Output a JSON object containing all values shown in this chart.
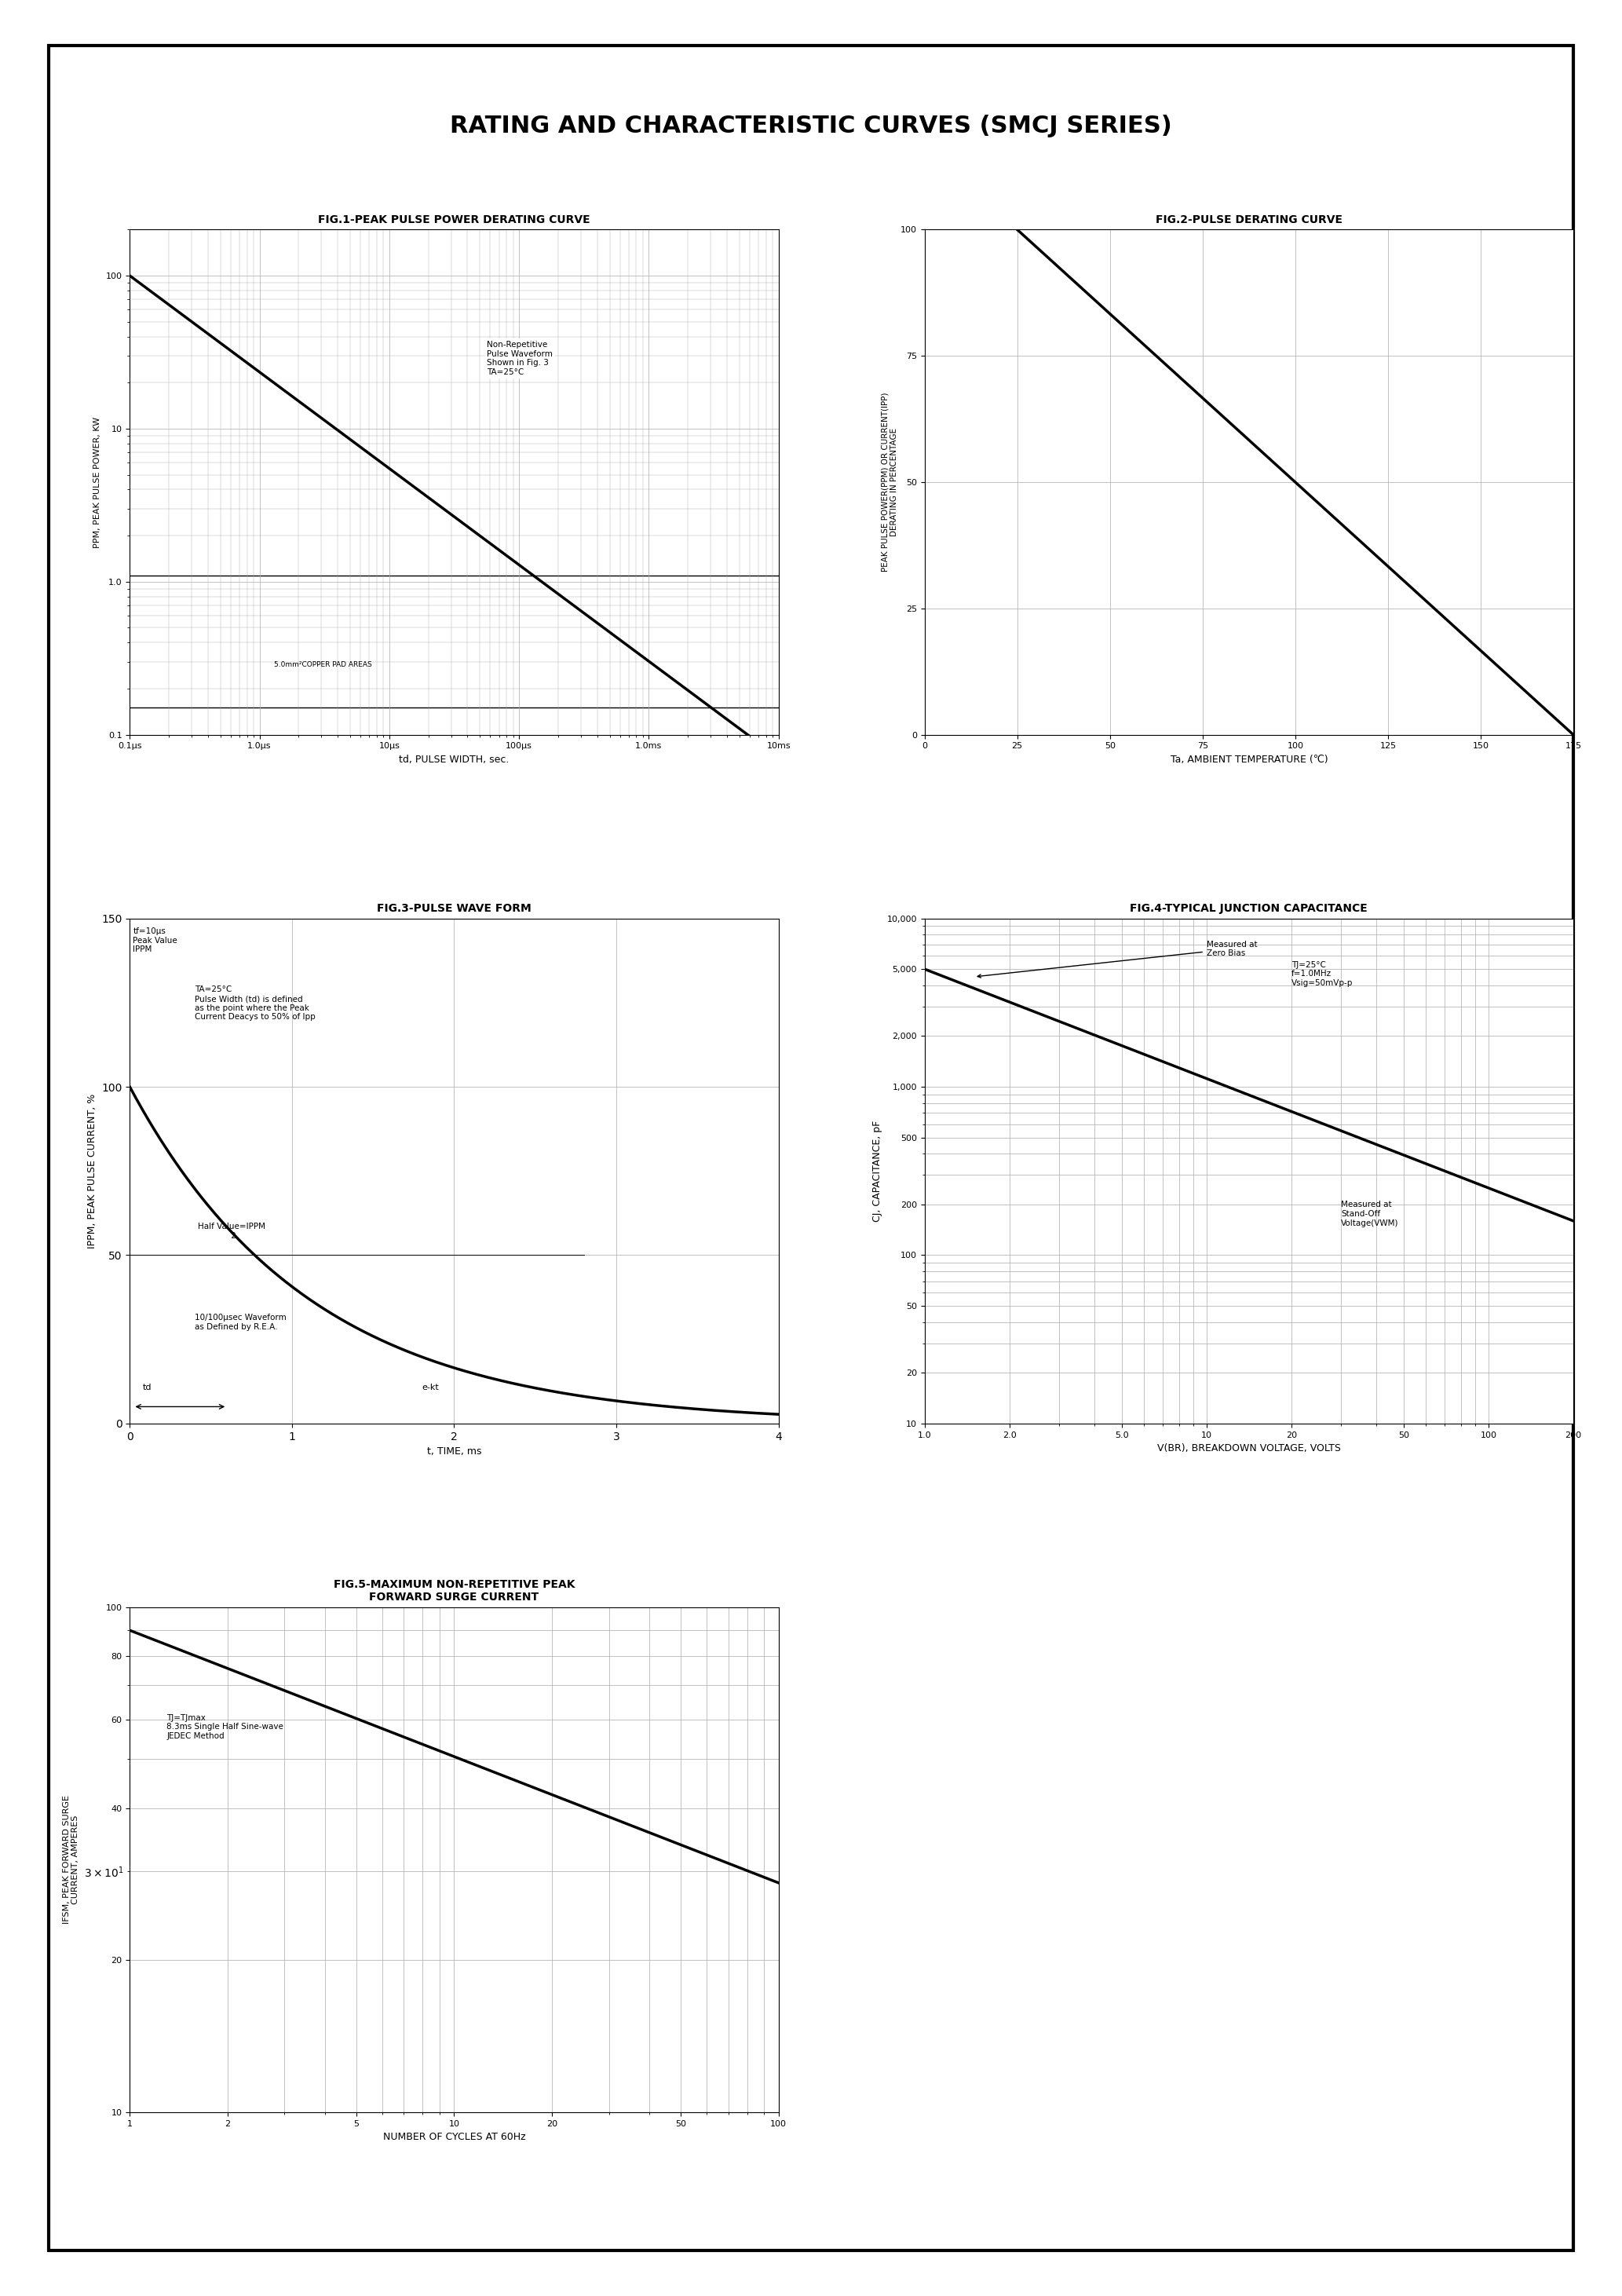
{
  "title": "RATING AND CHARACTERISTIC CURVES (SMCJ SERIES)",
  "fig1_title": "FIG.1-PEAK PULSE POWER DERATING CURVE",
  "fig2_title": "FIG.2-PULSE DERATING CURVE",
  "fig3_title": "FIG.3-PULSE WAVE FORM",
  "fig4_title": "FIG.4-TYPICAL JUNCTION CAPACITANCE",
  "fig5_title": "FIG.5-MAXIMUM NON-REPETITIVE PEAK\nFORWARD SURGE CURRENT",
  "fig1_xlabel": "td, PULSE WIDTH, sec.",
  "fig1_ylabel": "PPM, PEAK PULSE POWER, KW",
  "fig2_xlabel": "Ta, AMBIENT TEMPERATURE (℃)",
  "fig2_ylabel": "PEAK PULSE POWER(PPM) OR CURRENT(IPP)\nDERATING IN PERCENTAGE",
  "fig3_xlabel": "t, TIME, ms",
  "fig3_ylabel": "IPPМ, PEAK PULSE CURRENT, %",
  "fig4_xlabel": "V(BR), BREAKDOWN VOLTAGE, VOLTS",
  "fig4_ylabel": "CJ, CAPACITANCE, pF",
  "fig5_xlabel": "NUMBER OF CYCLES AT 60Hz",
  "fig5_ylabel": "IFSM, PEAK FORWARD SURGE\nCURRENT, AMPERES",
  "background_color": "#ffffff",
  "border_color": "#000000",
  "line_color": "#000000",
  "grid_color": "#aaaaaa"
}
